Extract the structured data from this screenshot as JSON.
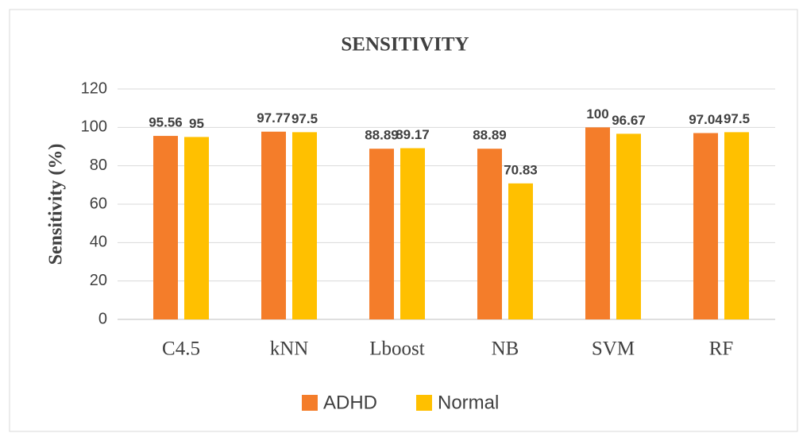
{
  "chart_data": {
    "type": "bar",
    "title": "SENSITIVITY",
    "y_label": "Sensitivity (%)",
    "categories": [
      "C4.5",
      "kNN",
      "Lboost",
      "NB",
      "SVM",
      "RF"
    ],
    "series": [
      {
        "name": "ADHD",
        "color": "#f47d2a",
        "values": [
          95.56,
          97.77,
          88.89,
          88.89,
          100,
          97.04
        ]
      },
      {
        "name": "Normal",
        "color": "#ffc000",
        "values": [
          95,
          97.5,
          89.17,
          70.83,
          96.67,
          97.5
        ]
      }
    ],
    "ylim": [
      0,
      120
    ],
    "yticks": [
      0,
      20,
      40,
      60,
      80,
      100,
      120
    ],
    "grid": true,
    "legend": "bottom"
  }
}
